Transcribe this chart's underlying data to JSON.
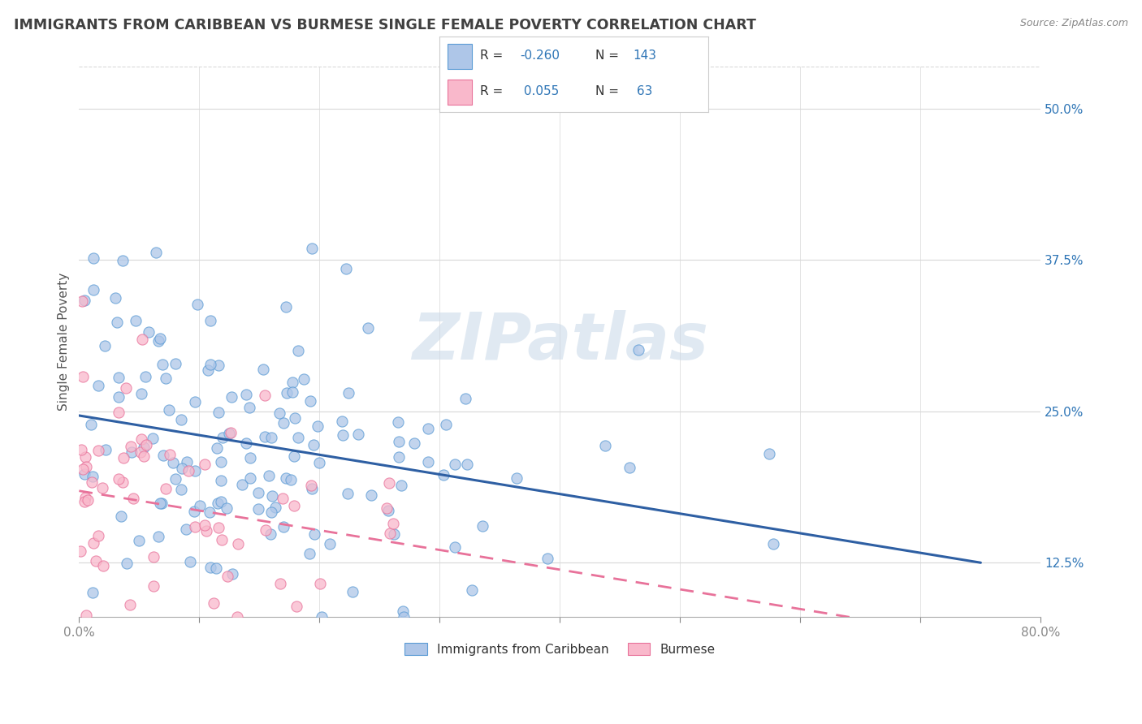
{
  "title": "IMMIGRANTS FROM CARIBBEAN VS BURMESE SINGLE FEMALE POVERTY CORRELATION CHART",
  "source_text": "Source: ZipAtlas.com",
  "ylabel": "Single Female Poverty",
  "xlim": [
    0.0,
    0.8
  ],
  "ylim": [
    0.08,
    0.535
  ],
  "yticks": [
    0.125,
    0.25,
    0.375,
    0.5
  ],
  "ytick_labels": [
    "12.5%",
    "25.0%",
    "37.5%",
    "50.0%"
  ],
  "xticks": [
    0.0,
    0.1,
    0.2,
    0.3,
    0.4,
    0.5,
    0.6,
    0.7,
    0.8
  ],
  "series1_color": "#aec6e8",
  "series2_color": "#f9b8cb",
  "series1_edge_color": "#5b9bd5",
  "series2_edge_color": "#e8729a",
  "series1_line_color": "#2e5fa3",
  "series2_line_color": "#e8729a",
  "series1_label": "Immigrants from Caribbean",
  "series2_label": "Burmese",
  "series1_R": -0.26,
  "series1_N": 143,
  "series2_R": 0.055,
  "series2_N": 63,
  "legend_R_color": "#2e75b6",
  "legend_N_color": "#2e75b6",
  "watermark": "ZIPatlas",
  "background_color": "#ffffff",
  "grid_color": "#d8d8d8",
  "axis_label_color": "#2e75b6",
  "title_color": "#404040",
  "title_fontsize": 12.5,
  "seed1": 42,
  "seed2": 77
}
